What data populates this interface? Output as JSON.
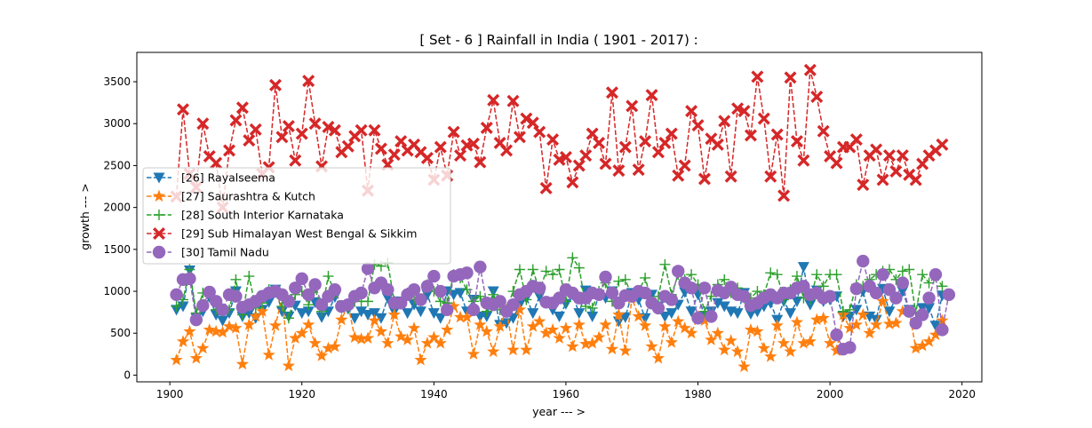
{
  "chart_data": {
    "type": "line",
    "title": "[ Set - 6 ] Rainfall in India ( 1901 - 2017) :",
    "xlabel": "year --- >",
    "ylabel": "growth --- >",
    "xlim": [
      1895,
      2023
    ],
    "ylim": [
      -80,
      3850
    ],
    "xticks": [
      1900,
      1920,
      1940,
      1960,
      1980,
      2000,
      2020
    ],
    "yticks": [
      0,
      500,
      1000,
      1500,
      2000,
      2500,
      3000,
      3500
    ],
    "x_start": 1901,
    "legend_position": "center-left",
    "series": [
      {
        "name": "[26] Rayalseema",
        "color": "#1f77b4",
        "marker": "triangle-down",
        "values": [
          780,
          820,
          1250,
          680,
          760,
          930,
          720,
          650,
          740,
          1000,
          700,
          740,
          680,
          780,
          870,
          1020,
          760,
          700,
          830,
          740,
          760,
          870,
          690,
          760,
          930,
          800,
          790,
          680,
          760,
          720,
          740,
          680,
          920,
          760,
          880,
          740,
          840,
          760,
          960,
          740,
          680,
          1000,
          960,
          980,
          760,
          900,
          700,
          700,
          1000,
          600,
          620,
          680,
          840,
          920,
          740,
          940,
          860,
          780,
          700,
          850,
          960,
          740,
          1010,
          700,
          960,
          920,
          1000,
          640,
          690,
          980,
          900,
          680,
          960,
          820,
          700,
          740,
          840,
          990,
          760,
          960,
          700,
          760,
          860,
          820,
          760,
          740,
          980,
          730,
          760,
          820,
          860,
          660,
          880,
          740,
          880,
          1290,
          840,
          1010,
          880,
          900,
          940,
          700,
          700,
          780,
          1000,
          700,
          660,
          1030,
          760,
          920,
          1000,
          780,
          620,
          800,
          800,
          590,
          950
        ]
      },
      {
        "name": "[27] Saurashtra & Kutch",
        "color": "#ff7f0e",
        "marker": "star",
        "values": [
          180,
          400,
          520,
          200,
          320,
          540,
          520,
          510,
          580,
          560,
          130,
          600,
          700,
          760,
          240,
          590,
          940,
          110,
          440,
          500,
          600,
          380,
          230,
          320,
          340,
          660,
          840,
          450,
          430,
          440,
          650,
          520,
          380,
          720,
          460,
          420,
          560,
          180,
          380,
          450,
          380,
          540,
          820,
          690,
          690,
          250,
          600,
          520,
          280,
          580,
          780,
          300,
          780,
          300,
          580,
          640,
          500,
          540,
          440,
          560,
          340,
          600,
          370,
          380,
          450,
          600,
          310,
          720,
          290,
          920,
          700,
          590,
          340,
          200,
          580,
          390,
          640,
          560,
          500,
          700,
          650,
          420,
          500,
          300,
          410,
          280,
          100,
          540,
          520,
          320,
          220,
          590,
          380,
          280,
          630,
          380,
          400,
          660,
          680,
          380,
          290,
          720,
          560,
          600,
          720,
          500,
          600,
          880,
          610,
          620,
          760,
          760,
          320,
          350,
          400,
          480,
          650
        ]
      },
      {
        "name": "[28] South Interior Karnataka",
        "color": "#2ca02c",
        "marker": "plus",
        "values": [
          820,
          900,
          1260,
          740,
          980,
          940,
          780,
          760,
          780,
          1140,
          720,
          1180,
          800,
          860,
          1020,
          1000,
          820,
          680,
          960,
          1000,
          840,
          1040,
          760,
          1180,
          980,
          820,
          800,
          880,
          880,
          880,
          1320,
          1300,
          1340,
          880,
          860,
          980,
          900,
          880,
          1080,
          1000,
          880,
          860,
          1200,
          1160,
          1020,
          880,
          940,
          760,
          960,
          780,
          780,
          1000,
          1260,
          900,
          1260,
          1000,
          1240,
          1200,
          1260,
          880,
          1400,
          1280,
          820,
          800,
          1000,
          1100,
          880,
          1120,
          1140,
          940,
          1000,
          1160,
          880,
          940,
          1320,
          960,
          1200,
          1140,
          1200,
          1080,
          760,
          940,
          1080,
          1140,
          980,
          1040,
          920,
          920,
          1000,
          960,
          1220,
          1200,
          900,
          1020,
          1180,
          920,
          900,
          1200,
          1060,
          1200,
          1200,
          760,
          780,
          1080,
          1060,
          1140,
          1200,
          1240,
          1260,
          1140,
          1240,
          1260,
          740,
          1200,
          1100,
          1180,
          1060
        ]
      },
      {
        "name": "[29] Sub Himalayan West Bengal & Sikkim",
        "color": "#d62728",
        "marker": "x-filled",
        "values": [
          2130,
          3170,
          2400,
          2240,
          3000,
          2610,
          2530,
          2000,
          2680,
          3040,
          3190,
          2800,
          2930,
          2400,
          2480,
          3460,
          2840,
          2970,
          2560,
          2880,
          3510,
          3000,
          2490,
          2960,
          2920,
          2660,
          2730,
          2850,
          2920,
          2200,
          2920,
          2700,
          2510,
          2630,
          2790,
          2680,
          2750,
          2660,
          2590,
          2330,
          2720,
          2380,
          2900,
          2620,
          2740,
          2760,
          2540,
          2950,
          3280,
          2770,
          2680,
          3270,
          2840,
          3060,
          3010,
          2900,
          2230,
          2810,
          2570,
          2600,
          2300,
          2500,
          2620,
          2880,
          2770,
          2520,
          3370,
          2440,
          2720,
          3210,
          2450,
          2790,
          3340,
          2660,
          2770,
          2880,
          2380,
          2500,
          3150,
          2980,
          2340,
          2820,
          2750,
          3030,
          2370,
          3180,
          3150,
          2860,
          3560,
          3060,
          2370,
          2870,
          2140,
          3550,
          2790,
          2560,
          3640,
          3320,
          2910,
          2610,
          2530,
          2720,
          2720,
          2810,
          2270,
          2620,
          2690,
          2330,
          2620,
          2430,
          2620,
          2390,
          2330,
          2520,
          2620,
          2680,
          2750
        ]
      },
      {
        "name": "[30] Tamil Nadu",
        "color": "#9467bd",
        "marker": "circle",
        "values": [
          960,
          1140,
          1150,
          660,
          830,
          990,
          880,
          780,
          960,
          940,
          810,
          840,
          880,
          940,
          980,
          1000,
          960,
          880,
          1040,
          1150,
          960,
          1080,
          840,
          940,
          1020,
          820,
          840,
          940,
          980,
          1270,
          1040,
          1100,
          1020,
          860,
          860,
          960,
          1020,
          900,
          1060,
          1180,
          1000,
          780,
          1180,
          1200,
          1220,
          780,
          1290,
          860,
          840,
          880,
          760,
          840,
          960,
          1000,
          1060,
          1040,
          870,
          860,
          920,
          1020,
          980,
          920,
          920,
          980,
          960,
          1170,
          980,
          860,
          950,
          940,
          1000,
          980,
          860,
          800,
          940,
          900,
          1240,
          1100,
          1040,
          680,
          1040,
          700,
          1010,
          980,
          1050,
          960,
          940,
          830,
          860,
          920,
          960,
          920,
          980,
          980,
          1040,
          1060,
          960,
          980,
          920,
          940,
          480,
          310,
          330,
          1030,
          1360,
          1060,
          980,
          1200,
          1020,
          920,
          1100,
          760,
          620,
          720,
          920,
          1200,
          540,
          960
        ]
      }
    ]
  }
}
